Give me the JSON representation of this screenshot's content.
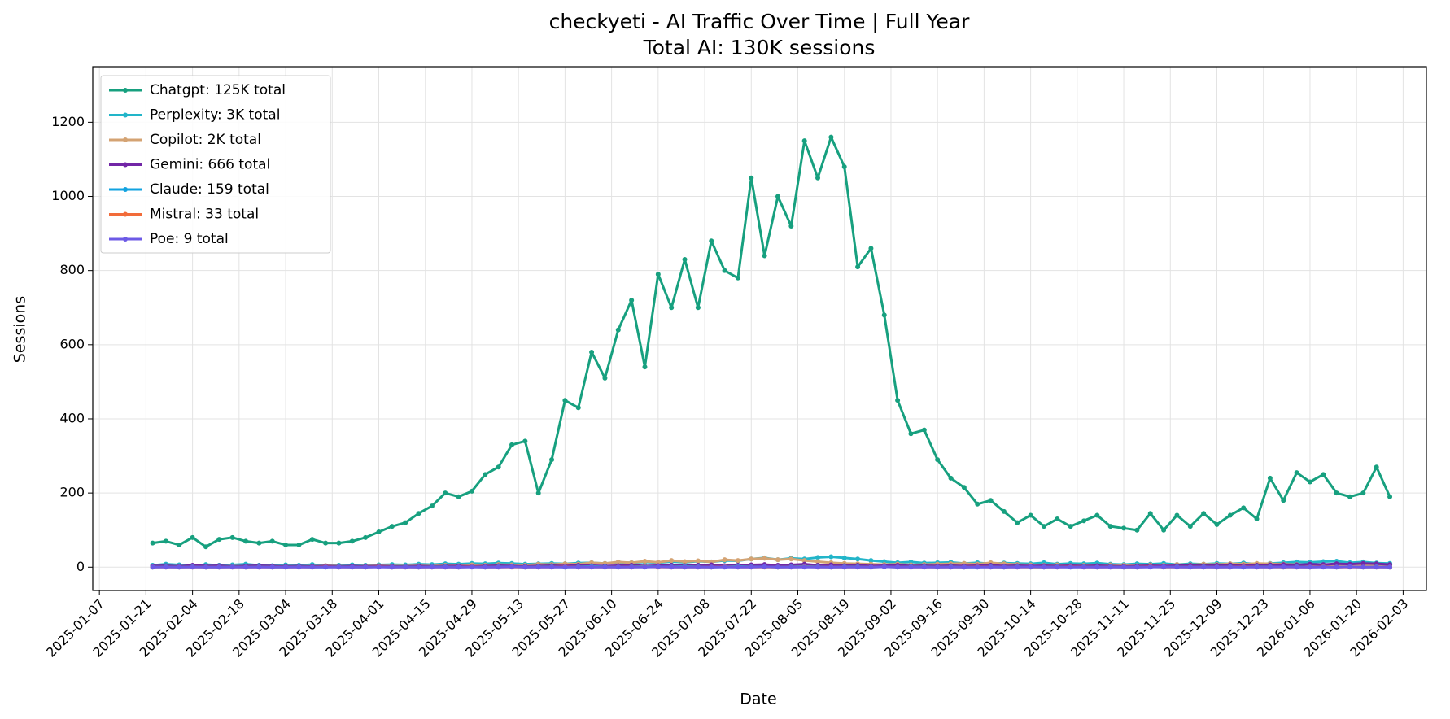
{
  "chart_data": {
    "type": "line",
    "title": "checkyeti - AI Traffic Over Time | Full Year",
    "subtitle": "Total AI: 130K sessions",
    "x_label": "Date",
    "y_label": "Sessions",
    "x": [
      "2025-01-23",
      "2025-01-27",
      "2025-01-31",
      "2025-02-04",
      "2025-02-08",
      "2025-02-12",
      "2025-02-16",
      "2025-02-20",
      "2025-02-24",
      "2025-02-28",
      "2025-03-04",
      "2025-03-08",
      "2025-03-12",
      "2025-03-16",
      "2025-03-20",
      "2025-03-24",
      "2025-03-28",
      "2025-04-01",
      "2025-04-05",
      "2025-04-09",
      "2025-04-13",
      "2025-04-17",
      "2025-04-21",
      "2025-04-25",
      "2025-04-29",
      "2025-05-03",
      "2025-05-07",
      "2025-05-11",
      "2025-05-15",
      "2025-05-19",
      "2025-05-23",
      "2025-05-27",
      "2025-05-31",
      "2025-06-04",
      "2025-06-08",
      "2025-06-12",
      "2025-06-16",
      "2025-06-20",
      "2025-06-24",
      "2025-06-28",
      "2025-07-02",
      "2025-07-06",
      "2025-07-10",
      "2025-07-14",
      "2025-07-18",
      "2025-07-22",
      "2025-07-26",
      "2025-07-30",
      "2025-08-03",
      "2025-08-07",
      "2025-08-11",
      "2025-08-15",
      "2025-08-19",
      "2025-08-23",
      "2025-08-27",
      "2025-08-31",
      "2025-09-04",
      "2025-09-08",
      "2025-09-12",
      "2025-09-16",
      "2025-09-20",
      "2025-09-24",
      "2025-09-28",
      "2025-10-02",
      "2025-10-06",
      "2025-10-10",
      "2025-10-14",
      "2025-10-18",
      "2025-10-22",
      "2025-10-26",
      "2025-10-30",
      "2025-11-03",
      "2025-11-07",
      "2025-11-11",
      "2025-11-15",
      "2025-11-19",
      "2025-11-23",
      "2025-11-27",
      "2025-12-01",
      "2025-12-05",
      "2025-12-09",
      "2025-12-13",
      "2025-12-17",
      "2025-12-21",
      "2025-12-25",
      "2025-12-29",
      "2026-01-02",
      "2026-01-06",
      "2026-01-10",
      "2026-01-14",
      "2026-01-18",
      "2026-01-22",
      "2026-01-26",
      "2026-01-30"
    ],
    "series": [
      {
        "name": "Chatgpt: 125K total",
        "color": "#17a07f",
        "values": [
          65,
          70,
          60,
          80,
          55,
          75,
          80,
          70,
          65,
          70,
          60,
          60,
          75,
          65,
          65,
          70,
          80,
          95,
          110,
          120,
          145,
          165,
          200,
          190,
          205,
          250,
          270,
          330,
          340,
          200,
          290,
          450,
          430,
          580,
          510,
          640,
          720,
          540,
          790,
          700,
          830,
          700,
          880,
          800,
          780,
          1050,
          840,
          1000,
          920,
          1150,
          1050,
          1160,
          1080,
          810,
          860,
          680,
          450,
          360,
          370,
          290,
          240,
          215,
          170,
          180,
          150,
          120,
          140,
          110,
          130,
          110,
          125,
          140,
          110,
          105,
          100,
          145,
          100,
          140,
          110,
          145,
          115,
          140,
          160,
          130,
          240,
          180,
          255,
          230,
          250,
          200,
          190,
          200,
          270,
          190
        ]
      },
      {
        "name": "Perplexity: 3K total",
        "color": "#22b5c9",
        "values": [
          5,
          8,
          6,
          4,
          7,
          5,
          6,
          8,
          5,
          4,
          6,
          5,
          7,
          4,
          5,
          6,
          5,
          6,
          7,
          6,
          8,
          7,
          9,
          8,
          10,
          9,
          11,
          10,
          8,
          9,
          10,
          9,
          11,
          12,
          10,
          13,
          12,
          14,
          12,
          15,
          13,
          16,
          14,
          18,
          17,
          22,
          25,
          20,
          24,
          22,
          26,
          28,
          25,
          22,
          18,
          15,
          12,
          14,
          11,
          12,
          13,
          10,
          12,
          9,
          11,
          10,
          9,
          12,
          8,
          10,
          9,
          11,
          8,
          7,
          9,
          8,
          10,
          7,
          9,
          8,
          10,
          9,
          11,
          8,
          10,
          12,
          14,
          13,
          15,
          16,
          12,
          14,
          11,
          10
        ]
      },
      {
        "name": "Copilot: 2K total",
        "color": "#d4a373",
        "values": [
          2,
          1,
          3,
          2,
          1,
          2,
          3,
          2,
          1,
          2,
          2,
          3,
          2,
          4,
          3,
          2,
          3,
          4,
          3,
          3,
          4,
          3,
          5,
          4,
          6,
          5,
          7,
          6,
          5,
          8,
          7,
          9,
          8,
          12,
          10,
          14,
          12,
          16,
          13,
          18,
          15,
          17,
          14,
          20,
          18,
          22,
          24,
          20,
          22,
          18,
          15,
          12,
          10,
          9,
          8,
          7,
          8,
          6,
          7,
          8,
          9,
          10,
          8,
          12,
          9,
          7,
          6,
          5,
          6,
          4,
          5,
          4,
          6,
          5,
          4,
          6,
          5,
          7,
          6,
          8,
          7,
          9,
          8,
          10,
          9,
          8,
          7,
          6,
          5,
          6,
          5,
          4,
          5,
          4
        ]
      },
      {
        "name": "Gemini: 666 total",
        "color": "#7226a6",
        "values": [
          3,
          4,
          2,
          5,
          3,
          4,
          2,
          3,
          4,
          3,
          2,
          3,
          2,
          3,
          2,
          3,
          2,
          3,
          2,
          2,
          3,
          2,
          3,
          3,
          2,
          3,
          4,
          3,
          2,
          3,
          4,
          3,
          5,
          4,
          3,
          4,
          5,
          3,
          4,
          5,
          4,
          5,
          6,
          4,
          5,
          6,
          7,
          5,
          6,
          8,
          5,
          6,
          4,
          5,
          3,
          4,
          5,
          3,
          4,
          3,
          4,
          3,
          4,
          5,
          3,
          4,
          3,
          4,
          3,
          4,
          3,
          4,
          3,
          2,
          3,
          4,
          3,
          4,
          5,
          4,
          5,
          6,
          4,
          5,
          6,
          7,
          6,
          8,
          7,
          9,
          8,
          10,
          9,
          7
        ]
      },
      {
        "name": "Claude: 159 total",
        "color": "#12a3e0",
        "values": [
          0,
          1,
          0,
          1,
          0,
          0,
          1,
          0,
          1,
          0,
          0,
          1,
          0,
          0,
          1,
          0,
          0,
          1,
          0,
          1,
          0,
          1,
          1,
          0,
          1,
          0,
          1,
          1,
          0,
          1,
          1,
          0,
          1,
          2,
          1,
          0,
          1,
          2,
          1,
          1,
          2,
          1,
          0,
          1,
          2,
          1,
          1,
          0,
          1,
          2,
          1,
          0,
          1,
          1,
          0,
          1,
          0,
          1,
          1,
          0,
          1,
          0,
          0,
          1,
          0,
          1,
          0,
          0,
          1,
          0,
          1,
          0,
          1,
          0,
          0,
          1,
          0,
          1,
          0,
          1,
          0,
          1,
          0,
          1,
          1,
          0,
          1,
          0,
          1,
          0,
          1,
          0,
          1,
          0
        ]
      },
      {
        "name": "Mistral: 33 total",
        "color": "#f26c3a",
        "values": [
          0,
          0,
          0,
          0,
          0,
          0,
          0,
          0,
          0,
          0,
          0,
          0,
          0,
          1,
          0,
          0,
          0,
          1,
          0,
          0,
          0,
          0,
          0,
          0,
          1,
          0,
          0,
          0,
          0,
          0,
          0,
          1,
          0,
          0,
          0,
          0,
          0,
          1,
          0,
          0,
          0,
          0,
          0,
          1,
          0,
          0,
          0,
          0,
          0,
          1,
          0,
          0,
          0,
          0,
          0,
          1,
          0,
          0,
          0,
          0,
          0,
          0,
          1,
          0,
          0,
          0,
          0,
          0,
          0,
          1,
          0,
          0,
          0,
          0,
          0,
          1,
          0,
          0,
          0,
          0,
          0,
          0,
          1,
          0,
          0,
          0,
          0,
          0,
          1,
          0,
          0,
          0,
          0,
          0
        ]
      },
      {
        "name": "Poe: 9 total",
        "color": "#6c5ae6",
        "values": [
          0,
          0,
          0,
          0,
          0,
          0,
          0,
          0,
          0,
          0,
          0,
          0,
          0,
          0,
          0,
          0,
          0,
          0,
          0,
          0,
          0,
          0,
          0,
          0,
          0,
          0,
          0,
          1,
          0,
          0,
          0,
          0,
          0,
          0,
          0,
          0,
          0,
          0,
          1,
          0,
          0,
          0,
          0,
          0,
          0,
          0,
          1,
          0,
          0,
          0,
          0,
          0,
          0,
          0,
          0,
          1,
          0,
          0,
          0,
          0,
          0,
          0,
          0,
          0,
          0,
          0,
          1,
          0,
          0,
          0,
          0,
          0,
          0,
          0,
          0,
          0,
          1,
          0,
          0,
          0,
          0,
          0,
          0,
          0,
          0,
          1,
          0,
          0,
          0,
          0,
          1,
          0,
          0,
          0
        ]
      }
    ],
    "xlim": [
      "2025-01-05",
      "2026-02-10"
    ],
    "xticks": [
      "2025-01-07",
      "2025-01-21",
      "2025-02-04",
      "2025-02-18",
      "2025-03-04",
      "2025-03-18",
      "2025-04-01",
      "2025-04-15",
      "2025-04-29",
      "2025-05-13",
      "2025-05-27",
      "2025-06-10",
      "2025-06-24",
      "2025-07-08",
      "2025-07-22",
      "2025-08-05",
      "2025-08-19",
      "2025-09-02",
      "2025-09-16",
      "2025-09-30",
      "2025-10-14",
      "2025-10-28",
      "2025-11-11",
      "2025-11-25",
      "2025-12-09",
      "2025-12-23",
      "2026-01-06",
      "2026-01-20",
      "2026-02-03"
    ],
    "ylim": [
      -63,
      1350
    ],
    "yticks": [
      0,
      200,
      400,
      600,
      800,
      1000,
      1200
    ],
    "grid": true,
    "legend": "upper-left"
  }
}
